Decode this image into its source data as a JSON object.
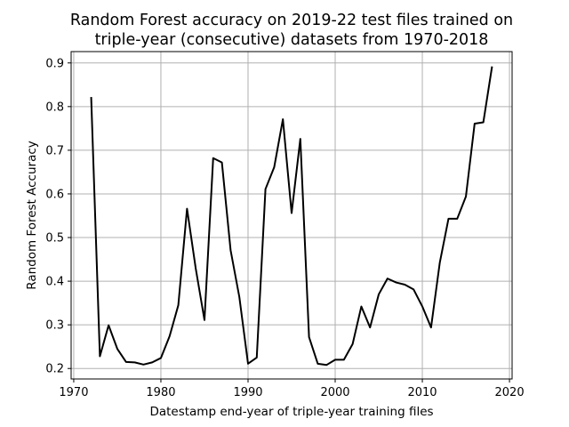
{
  "chart_data": {
    "type": "line",
    "title": [
      "Random Forest accuracy on 2019-22 test files trained on",
      "triple-year (consecutive) datasets from 1970-2018"
    ],
    "xlabel": "Datestamp end-year of triple-year training files",
    "ylabel": "Random Forest Accuracy",
    "xlim": [
      1969.7,
      2020.3
    ],
    "ylim": [
      0.176,
      0.926
    ],
    "xticks": [
      1970,
      1980,
      1990,
      2000,
      2010,
      2020
    ],
    "yticks": [
      0.2,
      0.3,
      0.4,
      0.5,
      0.6,
      0.7,
      0.8,
      0.9
    ],
    "grid": true,
    "series": [
      {
        "color": "#000000",
        "x": [
          1972,
          1973,
          1974,
          1975,
          1976,
          1977,
          1978,
          1979,
          1980,
          1981,
          1982,
          1983,
          1984,
          1985,
          1986,
          1987,
          1988,
          1989,
          1990,
          1991,
          1992,
          1993,
          1994,
          1995,
          1996,
          1997,
          1998,
          1999,
          2000,
          2001,
          2002,
          2003,
          2004,
          2005,
          2006,
          2007,
          2008,
          2009,
          2010,
          2011,
          2012,
          2013,
          2014,
          2015,
          2016,
          2017,
          2018
        ],
        "y": [
          0.822,
          0.228,
          0.299,
          0.245,
          0.215,
          0.214,
          0.209,
          0.214,
          0.224,
          0.274,
          0.345,
          0.566,
          0.429,
          0.311,
          0.682,
          0.672,
          0.471,
          0.364,
          0.211,
          0.225,
          0.611,
          0.661,
          0.771,
          0.556,
          0.726,
          0.272,
          0.211,
          0.208,
          0.22,
          0.22,
          0.256,
          0.342,
          0.294,
          0.37,
          0.406,
          0.397,
          0.392,
          0.381,
          0.342,
          0.294,
          0.442,
          0.543,
          0.543,
          0.594,
          0.761,
          0.764,
          0.892
        ]
      }
    ]
  }
}
